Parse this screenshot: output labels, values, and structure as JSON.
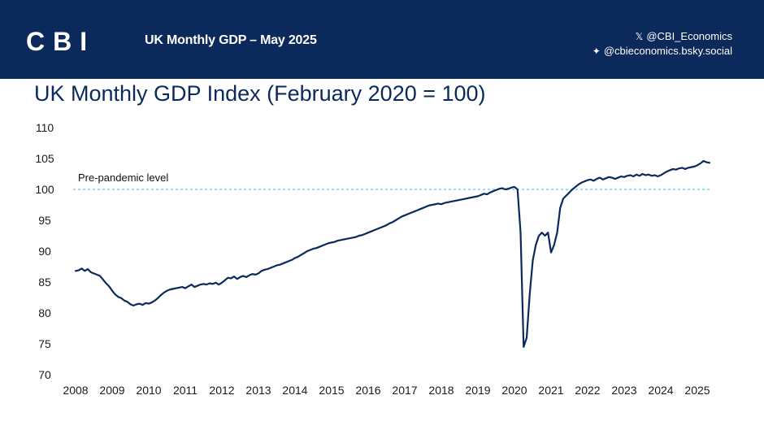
{
  "header": {
    "logo_text": "CBI",
    "title": "UK Monthly GDP – May 2025",
    "social_x": "@CBI_Economics",
    "social_bluesky": "@cbieconomics.bsky.social"
  },
  "colors": {
    "navy": "#0b2a5b",
    "reference_line": "#5fc9e6"
  },
  "chart_data": {
    "type": "line",
    "title": "UK Monthly GDP Index (February 2020 = 100)",
    "xlabel": "",
    "ylabel": "",
    "ylim": [
      70,
      110
    ],
    "yticks": [
      "110",
      "105",
      "100",
      "95",
      "90",
      "85",
      "80",
      "75",
      "70"
    ],
    "xticks": [
      "2008",
      "2009",
      "2010",
      "2011",
      "2012",
      "2013",
      "2014",
      "2015",
      "2016",
      "2017",
      "2018",
      "2019",
      "2020",
      "2021",
      "2022",
      "2023",
      "2024",
      "2025"
    ],
    "reference_line": {
      "value": 100,
      "label": "Pre-pandemic level"
    },
    "grid": false,
    "legend": "none",
    "series": [
      {
        "name": "UK Monthly GDP Index",
        "start": "2008-01",
        "values": [
          86.8,
          86.9,
          87.2,
          86.8,
          87.1,
          86.6,
          86.4,
          86.2,
          86.0,
          85.4,
          84.8,
          84.3,
          83.6,
          83.0,
          82.6,
          82.4,
          82.0,
          81.8,
          81.4,
          81.2,
          81.4,
          81.5,
          81.3,
          81.6,
          81.5,
          81.7,
          82.0,
          82.4,
          82.9,
          83.3,
          83.6,
          83.8,
          83.9,
          84.0,
          84.1,
          84.2,
          84.0,
          84.3,
          84.6,
          84.2,
          84.4,
          84.6,
          84.7,
          84.6,
          84.8,
          84.7,
          84.9,
          84.6,
          84.9,
          85.3,
          85.7,
          85.6,
          85.9,
          85.5,
          85.8,
          86.0,
          85.8,
          86.1,
          86.3,
          86.2,
          86.4,
          86.8,
          87.0,
          87.1,
          87.3,
          87.5,
          87.7,
          87.8,
          88.0,
          88.2,
          88.4,
          88.6,
          88.9,
          89.1,
          89.4,
          89.7,
          90.0,
          90.2,
          90.4,
          90.5,
          90.7,
          90.9,
          91.1,
          91.3,
          91.4,
          91.5,
          91.7,
          91.8,
          91.9,
          92.0,
          92.1,
          92.2,
          92.3,
          92.5,
          92.6,
          92.8,
          93.0,
          93.2,
          93.4,
          93.6,
          93.8,
          94.0,
          94.2,
          94.5,
          94.7,
          95.0,
          95.3,
          95.6,
          95.8,
          96.0,
          96.2,
          96.4,
          96.6,
          96.8,
          97.0,
          97.2,
          97.4,
          97.5,
          97.6,
          97.7,
          97.6,
          97.8,
          97.9,
          98.0,
          98.1,
          98.2,
          98.3,
          98.4,
          98.5,
          98.6,
          98.7,
          98.8,
          98.9,
          99.1,
          99.3,
          99.2,
          99.5,
          99.7,
          99.9,
          100.1,
          100.2,
          100.0,
          100.1,
          100.3,
          100.4,
          100.0,
          93.0,
          74.5,
          76.0,
          83.0,
          88.5,
          91.0,
          92.5,
          93.0,
          92.5,
          93.0,
          89.8,
          91.0,
          93.0,
          97.0,
          98.5,
          99.0,
          99.5,
          100.0,
          100.4,
          100.8,
          101.1,
          101.3,
          101.5,
          101.6,
          101.4,
          101.7,
          101.9,
          101.6,
          101.8,
          102.0,
          101.9,
          101.7,
          101.9,
          102.1,
          102.0,
          102.2,
          102.3,
          102.1,
          102.4,
          102.2,
          102.5,
          102.3,
          102.4,
          102.2,
          102.3,
          102.1,
          102.3,
          102.6,
          102.9,
          103.1,
          103.3,
          103.2,
          103.4,
          103.5,
          103.3,
          103.5,
          103.6,
          103.7,
          103.9,
          104.2,
          104.6,
          104.4,
          104.3
        ]
      }
    ]
  }
}
